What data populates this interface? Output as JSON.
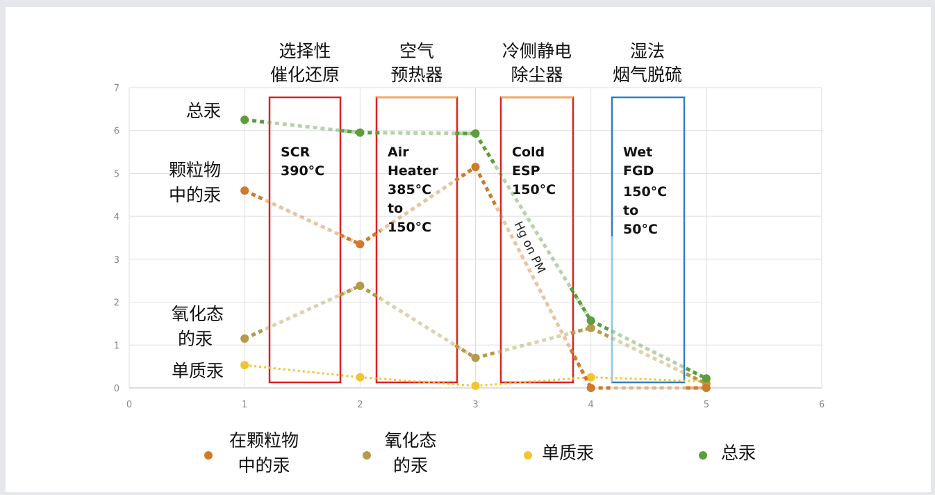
{
  "chart_data": {
    "type": "line",
    "xlim": [
      0,
      6
    ],
    "ylim": [
      0,
      7
    ],
    "x_ticks": [
      "0",
      "1",
      "2",
      "3",
      "4",
      "5",
      "6"
    ],
    "y_ticks": [
      "0",
      "1",
      "2",
      "3",
      "4",
      "5",
      "6",
      "7"
    ],
    "grid": true,
    "legend_placement": "bottom",
    "series": [
      {
        "key": "particulate",
        "color": "#d07a2a",
        "x": [
          1,
          2,
          3,
          4,
          5
        ],
        "y": [
          4.6,
          3.35,
          5.15,
          0.0,
          0.0
        ]
      },
      {
        "key": "oxidized",
        "color": "#b59a4a",
        "x": [
          1,
          2,
          3,
          4,
          5
        ],
        "y": [
          1.15,
          2.38,
          0.7,
          1.4,
          0.1
        ]
      },
      {
        "key": "elemental",
        "color": "#f2c431",
        "x": [
          1,
          2,
          3,
          4,
          5
        ],
        "y": [
          0.53,
          0.25,
          0.05,
          0.25,
          0.15
        ]
      },
      {
        "key": "total",
        "color": "#5b9e3c",
        "x": [
          1,
          2,
          3,
          4,
          5
        ],
        "y": [
          6.25,
          5.95,
          5.93,
          1.57,
          0.22
        ]
      }
    ],
    "stage_boxes": [
      {
        "cn_line1": "选择性",
        "cn_line2": "催化还原",
        "en": [
          "SCR",
          "390°C"
        ],
        "color": "#e02020"
      },
      {
        "cn_line1": "空气",
        "cn_line2": "预热器",
        "en": [
          "Air",
          "Heater",
          "385°C",
          "to",
          "150°C"
        ],
        "color": "#e02020"
      },
      {
        "cn_line1": "冷侧静电",
        "cn_line2": "除尘器",
        "en": [
          "Cold",
          "ESP",
          "150°C"
        ],
        "color": "#e02020"
      },
      {
        "cn_line1": "湿法",
        "cn_line2": "烟气脱硫",
        "en": [
          "Wet",
          "FGD",
          "150°C",
          "to",
          "50°C"
        ],
        "color": "#2f7fc0"
      }
    ],
    "stage_box_top_colors": [
      "#e02020",
      "#f0b23a",
      "#f0b23a",
      "#2f7fc0"
    ],
    "side_labels": {
      "total": "总汞",
      "particulate_l1": "颗粒物",
      "particulate_l2": "中的汞",
      "oxidized_l1": "氧化态",
      "oxidized_l2": "的汞",
      "elemental": "单质汞"
    },
    "annotation": "Hg on PM",
    "legend": {
      "particulate_l1": "在颗粒物",
      "particulate_l2": "中的汞",
      "oxidized_l1": "氧化态",
      "oxidized_l2": "的汞",
      "elemental": "单质汞",
      "total": "总汞"
    }
  }
}
